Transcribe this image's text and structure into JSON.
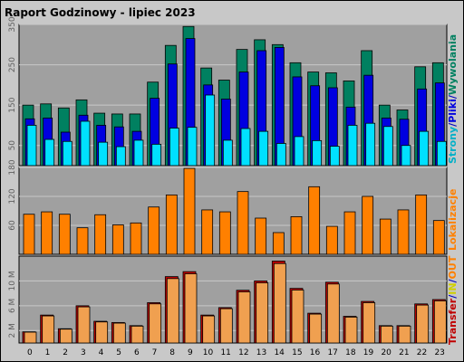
{
  "header": {
    "title": "Raport Godzinowy -  lipiec 2023"
  },
  "colors": {
    "background": "#c8c8c8",
    "plot_bg": "#a0a0a0",
    "title": "#0000c0",
    "strony": "#008060",
    "pliki": "#0000e0",
    "wywolania": "#00e0ff",
    "lokalizacje": "#ff8000",
    "transfer": "#c00000",
    "in": "#ffff00",
    "out": "#ff8000"
  },
  "chart_data": [
    {
      "type": "bar",
      "categories": [
        "0",
        "1",
        "2",
        "3",
        "4",
        "5",
        "6",
        "7",
        "8",
        "9",
        "10",
        "11",
        "12",
        "13",
        "14",
        "15",
        "16",
        "17",
        "18",
        "19",
        "20",
        "21",
        "22",
        "23"
      ],
      "ylim": [
        0,
        350
      ],
      "yticks": [
        "50",
        "150",
        "250",
        "350"
      ],
      "legend": [
        {
          "text": "Strony",
          "color_key": "wywolania"
        },
        {
          "text": "/",
          "color_key": "title"
        },
        {
          "text": "Pliki",
          "color_key": "pliki"
        },
        {
          "text": "/",
          "color_key": "title"
        },
        {
          "text": "Wywolania",
          "color_key": "strony"
        }
      ],
      "series": [
        {
          "key": "strony",
          "values": [
            150,
            153,
            143,
            163,
            130,
            128,
            128,
            207,
            298,
            345,
            242,
            212,
            288,
            312,
            300,
            255,
            232,
            230,
            210,
            285,
            150,
            138,
            245,
            255
          ]
        },
        {
          "key": "pliki",
          "values": [
            116,
            118,
            83,
            125,
            100,
            96,
            85,
            167,
            252,
            315,
            200,
            165,
            232,
            285,
            293,
            220,
            198,
            193,
            145,
            224,
            118,
            115,
            190,
            205
          ]
        },
        {
          "key": "wywolania",
          "values": [
            100,
            65,
            60,
            110,
            58,
            47,
            63,
            53,
            93,
            95,
            175,
            63,
            92,
            85,
            55,
            72,
            62,
            48,
            100,
            105,
            97,
            50,
            85,
            60
          ]
        }
      ]
    },
    {
      "type": "bar",
      "categories": [
        "0",
        "1",
        "2",
        "3",
        "4",
        "5",
        "6",
        "7",
        "8",
        "9",
        "10",
        "11",
        "12",
        "13",
        "14",
        "15",
        "16",
        "17",
        "18",
        "19",
        "20",
        "21",
        "22",
        "23"
      ],
      "ylim": [
        0,
        180
      ],
      "yticks": [
        "60",
        "120",
        "180"
      ],
      "legend": [
        {
          "text": "Lokalizacje",
          "color_key": "lokalizacje"
        }
      ],
      "series": [
        {
          "key": "lokalizacje",
          "values": [
            83,
            88,
            83,
            55,
            82,
            61,
            65,
            98,
            123,
            178,
            92,
            88,
            130,
            75,
            45,
            78,
            140,
            58,
            88,
            120,
            73,
            92,
            123,
            70
          ]
        }
      ]
    },
    {
      "type": "bar",
      "categories": [
        "0",
        "1",
        "2",
        "3",
        "4",
        "5",
        "6",
        "7",
        "8",
        "9",
        "10",
        "11",
        "12",
        "13",
        "14",
        "15",
        "16",
        "17",
        "18",
        "19",
        "20",
        "21",
        "22",
        "23"
      ],
      "ylim": [
        0,
        14
      ],
      "yticks": [
        "2 M",
        "6 M",
        "10 M"
      ],
      "legend": [
        {
          "text": "Transfer",
          "color_key": "transfer"
        },
        {
          "text": "/",
          "color_key": "title"
        },
        {
          "text": "IN",
          "color_key": "in"
        },
        {
          "text": "/",
          "color_key": "title"
        },
        {
          "text": "OUT",
          "color_key": "out"
        }
      ],
      "series": [
        {
          "key": "transfer",
          "values": [
            1.8,
            4.5,
            2.3,
            6.0,
            3.5,
            3.3,
            2.8,
            6.5,
            10.7,
            11.5,
            4.5,
            5.7,
            8.5,
            10.0,
            13.2,
            8.8,
            4.8,
            9.8,
            4.3,
            6.7,
            2.8,
            2.8,
            6.3,
            7.0
          ]
        }
      ]
    }
  ]
}
